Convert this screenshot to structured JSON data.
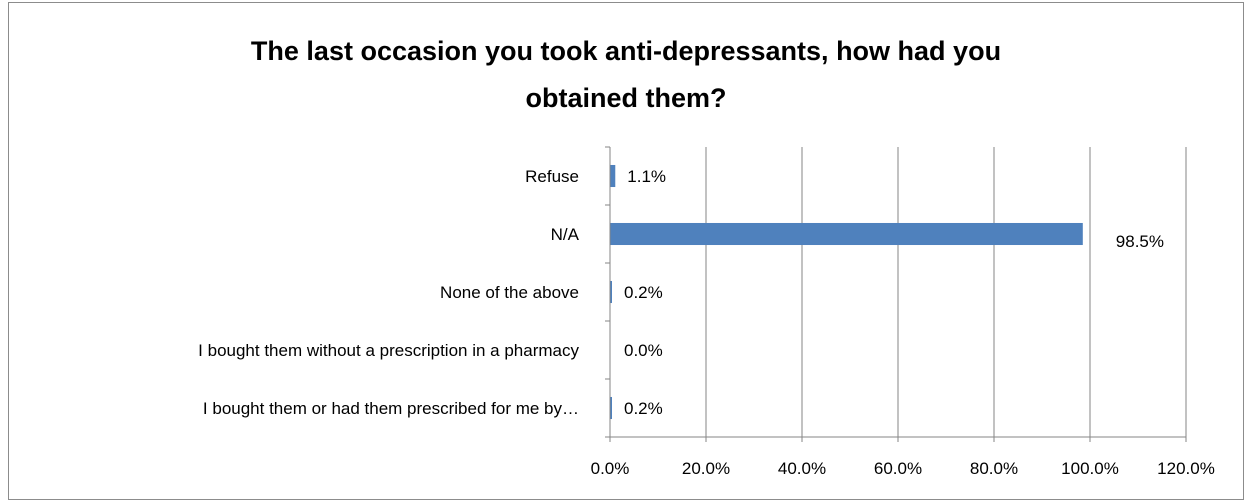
{
  "chart_data": {
    "type": "bar",
    "orientation": "horizontal",
    "title_lines": [
      "The last occasion you took anti-depressants, how had you",
      "obtained them?"
    ],
    "categories": [
      "Refuse",
      "N/A",
      "None of the above",
      "I bought them without a prescription in a pharmacy",
      "I bought them or had them prescribed for me by…"
    ],
    "values": [
      1.1,
      98.5,
      0.2,
      0.0,
      0.2
    ],
    "data_labels": [
      "1.1%",
      "98.5%",
      "0.2%",
      "0.0%",
      "0.2%"
    ],
    "xlim": [
      0,
      120
    ],
    "x_ticks": [
      0,
      20,
      40,
      60,
      80,
      100,
      120
    ],
    "x_tick_labels": [
      "0.0%",
      "20.0%",
      "40.0%",
      "60.0%",
      "80.0%",
      "100.0%",
      "120.0%"
    ],
    "grid": true,
    "bar_color": "#4f81bd",
    "grid_color": "#868686"
  }
}
